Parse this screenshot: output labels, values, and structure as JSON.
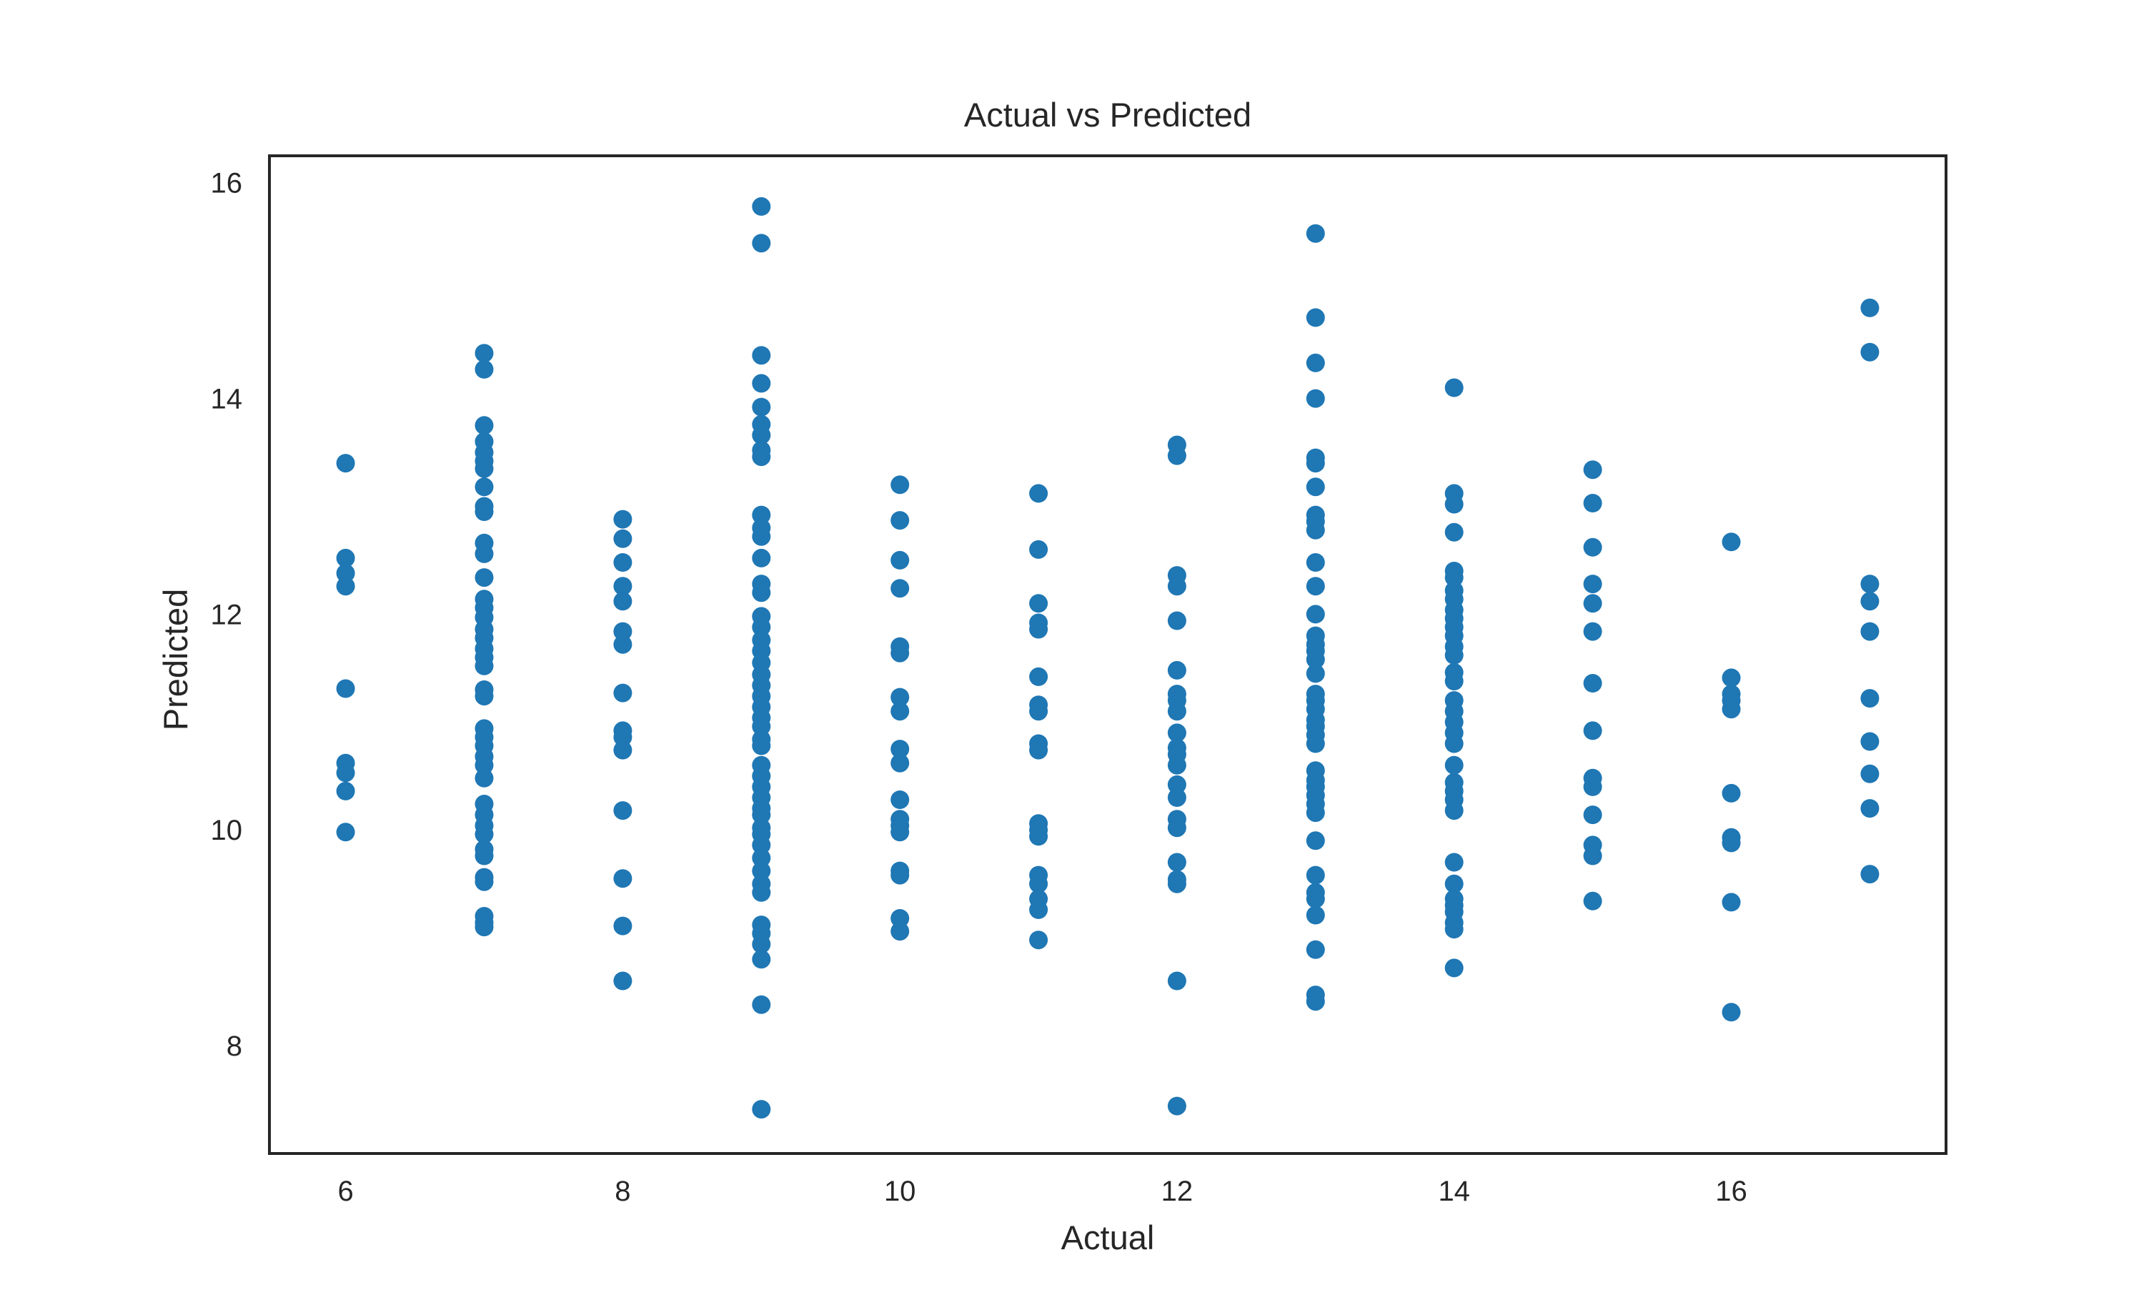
{
  "chart_data": {
    "type": "scatter",
    "title": "Actual vs Predicted",
    "xlabel": "Actual",
    "ylabel": "Predicted",
    "xlim": [
      5.45,
      17.55
    ],
    "ylim": [
      7.0,
      16.25
    ],
    "x_ticks": [
      6,
      8,
      10,
      12,
      14,
      16
    ],
    "y_ticks": [
      8,
      10,
      12,
      14,
      16
    ],
    "grid": false,
    "legend": "none",
    "colors": {
      "point": "#1f77b4",
      "frame": "#262626"
    },
    "series": [
      {
        "points": [
          [
            6,
            13.4
          ],
          [
            6,
            12.52
          ],
          [
            6,
            12.38
          ],
          [
            6,
            12.26
          ],
          [
            6,
            11.31
          ],
          [
            6,
            10.62
          ],
          [
            6,
            10.53
          ],
          [
            6,
            10.36
          ],
          [
            6,
            9.98
          ],
          [
            7,
            14.42
          ],
          [
            7,
            14.27
          ],
          [
            7,
            13.75
          ],
          [
            7,
            13.6
          ],
          [
            7,
            13.5
          ],
          [
            7,
            13.42
          ],
          [
            7,
            13.35
          ],
          [
            7,
            13.18
          ],
          [
            7,
            13.0
          ],
          [
            7,
            12.95
          ],
          [
            7,
            12.66
          ],
          [
            7,
            12.56
          ],
          [
            7,
            12.34
          ],
          [
            7,
            12.14
          ],
          [
            7,
            12.06
          ],
          [
            7,
            11.97
          ],
          [
            7,
            11.86
          ],
          [
            7,
            11.78
          ],
          [
            7,
            11.68
          ],
          [
            7,
            11.6
          ],
          [
            7,
            11.52
          ],
          [
            7,
            11.3
          ],
          [
            7,
            11.24
          ],
          [
            7,
            10.94
          ],
          [
            7,
            10.86
          ],
          [
            7,
            10.78
          ],
          [
            7,
            10.68
          ],
          [
            7,
            10.6
          ],
          [
            7,
            10.48
          ],
          [
            7,
            10.24
          ],
          [
            7,
            10.14
          ],
          [
            7,
            10.04
          ],
          [
            7,
            9.96
          ],
          [
            7,
            9.82
          ],
          [
            7,
            9.76
          ],
          [
            7,
            9.56
          ],
          [
            7,
            9.52
          ],
          [
            7,
            9.2
          ],
          [
            7,
            9.14
          ],
          [
            7,
            9.1
          ],
          [
            8,
            12.88
          ],
          [
            8,
            12.7
          ],
          [
            8,
            12.48
          ],
          [
            8,
            12.26
          ],
          [
            8,
            12.12
          ],
          [
            8,
            11.84
          ],
          [
            8,
            11.72
          ],
          [
            8,
            11.27
          ],
          [
            8,
            10.92
          ],
          [
            8,
            10.86
          ],
          [
            8,
            10.74
          ],
          [
            8,
            10.18
          ],
          [
            8,
            9.55
          ],
          [
            8,
            9.11
          ],
          [
            8,
            8.6
          ],
          [
            9,
            15.78
          ],
          [
            9,
            15.44
          ],
          [
            9,
            14.4
          ],
          [
            9,
            14.14
          ],
          [
            9,
            13.92
          ],
          [
            9,
            13.76
          ],
          [
            9,
            13.66
          ],
          [
            9,
            13.52
          ],
          [
            9,
            13.46
          ],
          [
            9,
            12.92
          ],
          [
            9,
            12.8
          ],
          [
            9,
            12.72
          ],
          [
            9,
            12.52
          ],
          [
            9,
            12.28
          ],
          [
            9,
            12.2
          ],
          [
            9,
            11.98
          ],
          [
            9,
            11.88
          ],
          [
            9,
            11.76
          ],
          [
            9,
            11.66
          ],
          [
            9,
            11.55
          ],
          [
            9,
            11.44
          ],
          [
            9,
            11.34
          ],
          [
            9,
            11.24
          ],
          [
            9,
            11.14
          ],
          [
            9,
            11.04
          ],
          [
            9,
            10.96
          ],
          [
            9,
            10.84
          ],
          [
            9,
            10.78
          ],
          [
            9,
            10.6
          ],
          [
            9,
            10.5
          ],
          [
            9,
            10.4
          ],
          [
            9,
            10.3
          ],
          [
            9,
            10.2
          ],
          [
            9,
            10.14
          ],
          [
            9,
            10.02
          ],
          [
            9,
            9.96
          ],
          [
            9,
            9.86
          ],
          [
            9,
            9.74
          ],
          [
            9,
            9.62
          ],
          [
            9,
            9.5
          ],
          [
            9,
            9.42
          ],
          [
            9,
            9.12
          ],
          [
            9,
            9.04
          ],
          [
            9,
            8.94
          ],
          [
            9,
            8.8
          ],
          [
            9,
            8.38
          ],
          [
            9,
            7.41
          ],
          [
            10,
            13.2
          ],
          [
            10,
            12.87
          ],
          [
            10,
            12.5
          ],
          [
            10,
            12.24
          ],
          [
            10,
            11.7
          ],
          [
            10,
            11.64
          ],
          [
            10,
            11.23
          ],
          [
            10,
            11.1
          ],
          [
            10,
            10.75
          ],
          [
            10,
            10.62
          ],
          [
            10,
            10.28
          ],
          [
            10,
            10.1
          ],
          [
            10,
            10.04
          ],
          [
            10,
            9.98
          ],
          [
            10,
            9.62
          ],
          [
            10,
            9.58
          ],
          [
            10,
            9.18
          ],
          [
            10,
            9.06
          ],
          [
            11,
            13.12
          ],
          [
            11,
            12.6
          ],
          [
            11,
            12.1
          ],
          [
            11,
            11.92
          ],
          [
            11,
            11.86
          ],
          [
            11,
            11.42
          ],
          [
            11,
            11.16
          ],
          [
            11,
            11.1
          ],
          [
            11,
            10.8
          ],
          [
            11,
            10.74
          ],
          [
            11,
            10.06
          ],
          [
            11,
            10.0
          ],
          [
            11,
            9.94
          ],
          [
            11,
            9.58
          ],
          [
            11,
            9.5
          ],
          [
            11,
            9.36
          ],
          [
            11,
            9.26
          ],
          [
            11,
            8.98
          ],
          [
            12,
            13.57
          ],
          [
            12,
            13.47
          ],
          [
            12,
            12.36
          ],
          [
            12,
            12.26
          ],
          [
            12,
            11.94
          ],
          [
            12,
            11.48
          ],
          [
            12,
            11.26
          ],
          [
            12,
            11.2
          ],
          [
            12,
            11.1
          ],
          [
            12,
            10.9
          ],
          [
            12,
            10.76
          ],
          [
            12,
            10.7
          ],
          [
            12,
            10.6
          ],
          [
            12,
            10.42
          ],
          [
            12,
            10.3
          ],
          [
            12,
            10.1
          ],
          [
            12,
            10.02
          ],
          [
            12,
            9.7
          ],
          [
            12,
            9.54
          ],
          [
            12,
            9.5
          ],
          [
            12,
            8.6
          ],
          [
            12,
            7.44
          ],
          [
            13,
            15.53
          ],
          [
            13,
            14.75
          ],
          [
            13,
            14.33
          ],
          [
            13,
            14.0
          ],
          [
            13,
            13.45
          ],
          [
            13,
            13.4
          ],
          [
            13,
            13.18
          ],
          [
            13,
            12.92
          ],
          [
            13,
            12.86
          ],
          [
            13,
            12.78
          ],
          [
            13,
            12.48
          ],
          [
            13,
            12.26
          ],
          [
            13,
            12.0
          ],
          [
            13,
            11.8
          ],
          [
            13,
            11.72
          ],
          [
            13,
            11.66
          ],
          [
            13,
            11.58
          ],
          [
            13,
            11.45
          ],
          [
            13,
            11.26
          ],
          [
            13,
            11.2
          ],
          [
            13,
            11.12
          ],
          [
            13,
            11.02
          ],
          [
            13,
            10.96
          ],
          [
            13,
            10.88
          ],
          [
            13,
            10.8
          ],
          [
            13,
            10.55
          ],
          [
            13,
            10.46
          ],
          [
            13,
            10.4
          ],
          [
            13,
            10.32
          ],
          [
            13,
            10.24
          ],
          [
            13,
            10.16
          ],
          [
            13,
            9.9
          ],
          [
            13,
            9.58
          ],
          [
            13,
            9.42
          ],
          [
            13,
            9.36
          ],
          [
            13,
            9.21
          ],
          [
            13,
            8.89
          ],
          [
            13,
            8.47
          ],
          [
            13,
            8.41
          ],
          [
            14,
            14.1
          ],
          [
            14,
            13.12
          ],
          [
            14,
            13.02
          ],
          [
            14,
            12.76
          ],
          [
            14,
            12.4
          ],
          [
            14,
            12.34
          ],
          [
            14,
            12.22
          ],
          [
            14,
            12.14
          ],
          [
            14,
            12.04
          ],
          [
            14,
            11.96
          ],
          [
            14,
            11.88
          ],
          [
            14,
            11.8
          ],
          [
            14,
            11.7
          ],
          [
            14,
            11.62
          ],
          [
            14,
            11.46
          ],
          [
            14,
            11.38
          ],
          [
            14,
            11.2
          ],
          [
            14,
            11.1
          ],
          [
            14,
            11.0
          ],
          [
            14,
            10.9
          ],
          [
            14,
            10.8
          ],
          [
            14,
            10.6
          ],
          [
            14,
            10.44
          ],
          [
            14,
            10.36
          ],
          [
            14,
            10.28
          ],
          [
            14,
            10.18
          ],
          [
            14,
            9.7
          ],
          [
            14,
            9.5
          ],
          [
            14,
            9.36
          ],
          [
            14,
            9.3
          ],
          [
            14,
            9.24
          ],
          [
            14,
            9.14
          ],
          [
            14,
            9.08
          ],
          [
            14,
            8.72
          ],
          [
            15,
            13.34
          ],
          [
            15,
            13.03
          ],
          [
            15,
            12.62
          ],
          [
            15,
            12.28
          ],
          [
            15,
            12.1
          ],
          [
            15,
            11.84
          ],
          [
            15,
            11.36
          ],
          [
            15,
            10.92
          ],
          [
            15,
            10.48
          ],
          [
            15,
            10.4
          ],
          [
            15,
            10.14
          ],
          [
            15,
            9.86
          ],
          [
            15,
            9.76
          ],
          [
            15,
            9.34
          ],
          [
            16,
            12.67
          ],
          [
            16,
            11.41
          ],
          [
            16,
            11.26
          ],
          [
            16,
            11.2
          ],
          [
            16,
            11.12
          ],
          [
            16,
            10.34
          ],
          [
            16,
            9.93
          ],
          [
            16,
            9.88
          ],
          [
            16,
            9.33
          ],
          [
            16,
            8.31
          ],
          [
            17,
            14.84
          ],
          [
            17,
            14.43
          ],
          [
            17,
            12.28
          ],
          [
            17,
            12.12
          ],
          [
            17,
            11.84
          ],
          [
            17,
            11.22
          ],
          [
            17,
            10.82
          ],
          [
            17,
            10.52
          ],
          [
            17,
            10.2
          ],
          [
            17,
            9.59
          ]
        ]
      }
    ]
  }
}
